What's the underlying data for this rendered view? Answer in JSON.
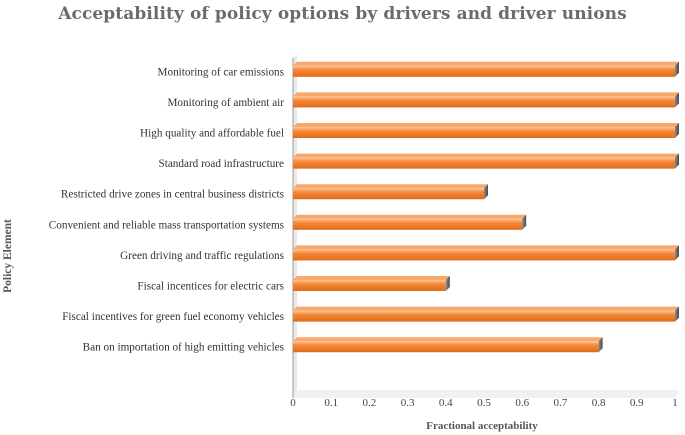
{
  "chart_data": {
    "type": "bar",
    "orientation": "horizontal",
    "title": "Acceptability of policy options by drivers and driver unions",
    "xlabel": "Fractional acceptability",
    "ylabel": "Policy Element",
    "xlim": [
      0,
      1
    ],
    "xticks": [
      "0",
      "0.1",
      "0.2",
      "0.3",
      "0.4",
      "0.5",
      "0.6",
      "0.7",
      "0.8",
      "0.9",
      "1"
    ],
    "categories": [
      "Monitoring of car emissions",
      "Monitoring of ambient air",
      "High quality and affordable fuel",
      "Standard road infrastructure",
      "Restricted drive zones in central business districts",
      "Convenient and reliable mass transportation systems",
      "Green driving and traffic regulations",
      "Fiscal incentices for electric cars",
      "Fiscal incentives for green fuel economy vehicles",
      "Ban on importation of high emitting vehicles"
    ],
    "values": [
      1.0,
      1.0,
      1.0,
      1.0,
      0.5,
      0.6,
      1.0,
      0.4,
      1.0,
      0.8
    ],
    "bar_color": "#f07f2a",
    "grid": false
  }
}
